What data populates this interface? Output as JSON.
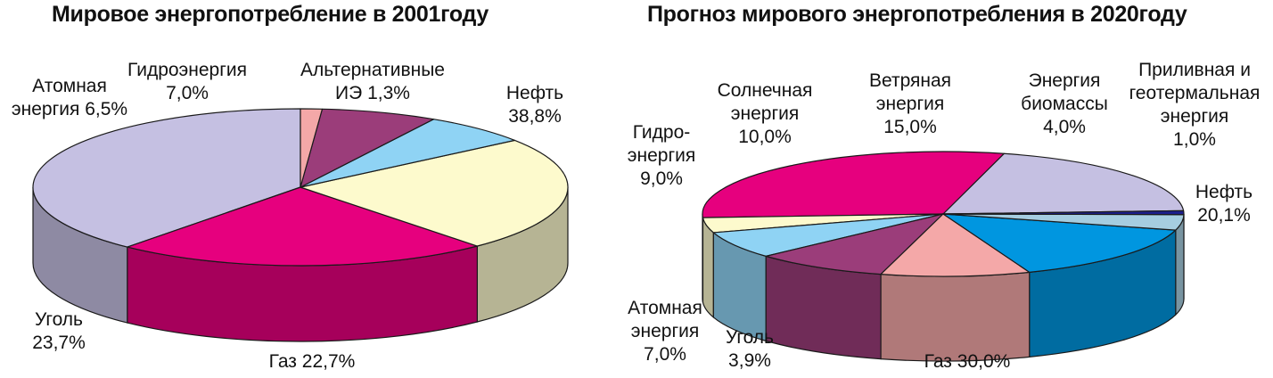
{
  "chart_data": [
    {
      "type": "pie",
      "title": "Мировое энергопотребление в 2001году",
      "categories": [
        "Нефть",
        "Газ",
        "Уголь",
        "Атомная энергия",
        "Гидроэнергия",
        "Альтернативные ИЭ"
      ],
      "values": [
        38.8,
        22.7,
        23.7,
        6.5,
        7.0,
        1.3
      ],
      "colors": [
        "#c5c0e2",
        "#e6007e",
        "#fdfacd",
        "#8fd3f4",
        "#9b3d7a",
        "#f4a8a8"
      ],
      "labels": [
        {
          "lines": [
            "Нефть",
            "38,8%"
          ]
        },
        {
          "lines": [
            "Газ 22,7%"
          ]
        },
        {
          "lines": [
            "Уголь",
            "23,7%"
          ]
        },
        {
          "lines": [
            "Атомная",
            "энергия 6,5%"
          ]
        },
        {
          "lines": [
            "Гидроэнергия",
            "7,0%"
          ]
        },
        {
          "lines": [
            "Альтернативные",
            "ИЭ 1,3%"
          ]
        }
      ]
    },
    {
      "type": "pie",
      "title": "Прогноз мирового энергопотребления в 2020году",
      "categories": [
        "Нефть",
        "Газ",
        "Уголь",
        "Атомная энергия",
        "Гидроэнергия",
        "Солнечная энергия",
        "Ветряная энергия",
        "Энергия биомассы",
        "Приливная и геотермальная энергия"
      ],
      "values": [
        20.1,
        30.0,
        3.9,
        7.0,
        9.0,
        10.0,
        15.0,
        4.0,
        1.0
      ],
      "colors": [
        "#c5c0e2",
        "#e6007e",
        "#fdfacd",
        "#8fd3f4",
        "#9b3d7a",
        "#f4a8a8",
        "#0096e0",
        "#a6cde0",
        "#1d1f8c"
      ],
      "labels": [
        {
          "lines": [
            "Нефть",
            "20,1%"
          ]
        },
        {
          "lines": [
            "Газ 30,0%"
          ]
        },
        {
          "lines": [
            "Уголь",
            "3,9%"
          ]
        },
        {
          "lines": [
            "Атомная",
            "энергия",
            "7,0%"
          ]
        },
        {
          "lines": [
            "Гидро-",
            "энергия",
            "9,0%"
          ]
        },
        {
          "lines": [
            "Солнечная",
            "энергия",
            "10,0%"
          ]
        },
        {
          "lines": [
            "Ветряная",
            "энергия",
            "15,0%"
          ]
        },
        {
          "lines": [
            "Энергия",
            "биомассы",
            "4,0%"
          ]
        },
        {
          "lines": [
            "Приливная и",
            "геотермальная",
            "энергия",
            "1,0%"
          ]
        }
      ]
    }
  ]
}
